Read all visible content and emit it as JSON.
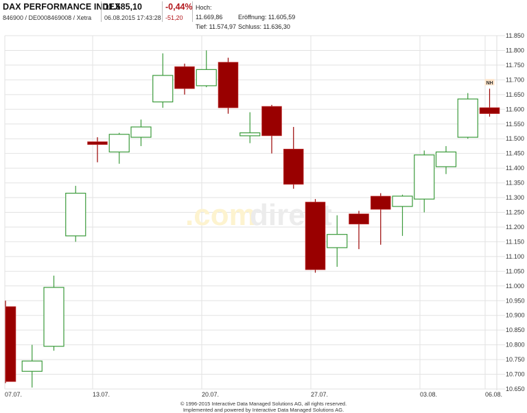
{
  "header": {
    "title": "DAX PERFORMANCE INDEX",
    "identifiers": "846900 / DE0008469008 / Xetra",
    "last_price": "11.585,10",
    "datetime": "06.08.2015 17:43:28",
    "change_pct": "-0,44%",
    "change_abs": "-51,20",
    "high_label": "Hoch: 11.669,86",
    "open_label": "Eröffnung: 11.605,59",
    "low_label": "Tief: 11.574,97",
    "close_label": "Schluss: 11.636,30"
  },
  "watermark": {
    "dot_com": ".com",
    "direct": "direct"
  },
  "colors": {
    "up": "#3a9a3a",
    "down": "#990000",
    "grid": "#e2e2e2",
    "watermark_yellow": "#fdf3cf",
    "watermark_gray": "#ececec"
  },
  "footer": {
    "line1": "© 1996-2015 Interactive Data Managed Solutions AG, all rights reserved.",
    "line2": "Implemented and powered by Interactive Data Managed Solutions AG."
  },
  "chart_data": {
    "type": "candlestick",
    "title": "DAX PERFORMANCE INDEX",
    "xlabel": "",
    "ylabel": "",
    "ylim": [
      10650,
      11850
    ],
    "y_ticks": [
      "11.850",
      "11.800",
      "11.750",
      "11.700",
      "11.650",
      "11.600",
      "11.550",
      "11.500",
      "11.450",
      "11.400",
      "11.350",
      "11.300",
      "11.250",
      "11.200",
      "11.150",
      "11.100",
      "11.050",
      "11.000",
      "10.950",
      "10.900",
      "10.850",
      "10.800",
      "10.750",
      "10.700",
      "10.650"
    ],
    "x_tick_labels": [
      {
        "label": "07.07.",
        "index": 0
      },
      {
        "label": "13.07.",
        "index": 4
      },
      {
        "label": "20.07.",
        "index": 9
      },
      {
        "label": "27.07.",
        "index": 14
      },
      {
        "label": "03.08.",
        "index": 19
      },
      {
        "label": "06.08.",
        "index": 22
      }
    ],
    "grid": true,
    "annotations": [
      {
        "label": "NH",
        "index": 22,
        "meaning": "new high marker"
      }
    ],
    "candles": [
      {
        "date": "07.07.",
        "open": 10930,
        "high": 10950,
        "low": 10670,
        "close": 10675
      },
      {
        "date": "08.07.",
        "open": 10710,
        "high": 10800,
        "low": 10655,
        "close": 10745
      },
      {
        "date": "09.07.",
        "open": 10795,
        "high": 11035,
        "low": 10780,
        "close": 10995
      },
      {
        "date": "10.07.",
        "open": 11170,
        "high": 11340,
        "low": 11150,
        "close": 11315
      },
      {
        "date": "13.07.",
        "open": 11490,
        "high": 11505,
        "low": 11420,
        "close": 11480
      },
      {
        "date": "14.07.",
        "open": 11455,
        "high": 11520,
        "low": 11415,
        "close": 11515
      },
      {
        "date": "15.07.",
        "open": 11505,
        "high": 11565,
        "low": 11475,
        "close": 11540
      },
      {
        "date": "16.07.",
        "open": 11625,
        "high": 11790,
        "low": 11605,
        "close": 11715
      },
      {
        "date": "17.07.",
        "open": 11745,
        "high": 11755,
        "low": 11650,
        "close": 11670
      },
      {
        "date": "20.07.",
        "open": 11680,
        "high": 11800,
        "low": 11675,
        "close": 11735
      },
      {
        "date": "21.07.",
        "open": 11760,
        "high": 11775,
        "low": 11585,
        "close": 11605
      },
      {
        "date": "22.07.",
        "open": 11510,
        "high": 11590,
        "low": 11485,
        "close": 11520
      },
      {
        "date": "23.07.",
        "open": 11610,
        "high": 11615,
        "low": 11450,
        "close": 11510
      },
      {
        "date": "24.07.",
        "open": 11465,
        "high": 11540,
        "low": 11330,
        "close": 11345
      },
      {
        "date": "27.07.",
        "open": 11285,
        "high": 11295,
        "low": 11045,
        "close": 11055
      },
      {
        "date": "28.07.",
        "open": 11130,
        "high": 11240,
        "low": 11065,
        "close": 11175
      },
      {
        "date": "29.07.",
        "open": 11245,
        "high": 11255,
        "low": 11125,
        "close": 11210
      },
      {
        "date": "30.07.",
        "open": 11305,
        "high": 11315,
        "low": 11140,
        "close": 11260
      },
      {
        "date": "31.07.",
        "open": 11270,
        "high": 11310,
        "low": 11170,
        "close": 11305
      },
      {
        "date": "03.08.",
        "open": 11295,
        "high": 11460,
        "low": 11250,
        "close": 11445
      },
      {
        "date": "04.08.",
        "open": 11405,
        "high": 11475,
        "low": 11380,
        "close": 11455
      },
      {
        "date": "05.08.",
        "open": 11505,
        "high": 11655,
        "low": 11500,
        "close": 11635
      },
      {
        "date": "06.08.",
        "open": 11605.59,
        "high": 11669.86,
        "low": 11574.97,
        "close": 11585.1
      }
    ]
  }
}
